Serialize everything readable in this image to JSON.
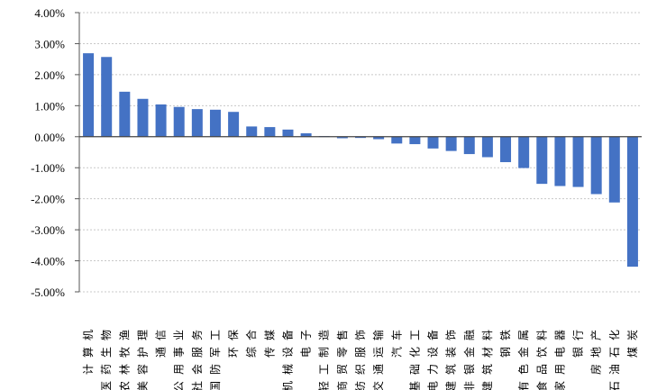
{
  "chart_data": {
    "type": "bar",
    "title": "",
    "xlabel": "",
    "ylabel": "",
    "ylim": [
      -5,
      4
    ],
    "yticks": [
      "4.00%",
      "3.00%",
      "2.00%",
      "1.00%",
      "0.00%",
      "-1.00%",
      "-2.00%",
      "-3.00%",
      "-4.00%",
      "-5.00%"
    ],
    "grid": true,
    "bar_color": "#4472C4",
    "categories": [
      "计算机",
      "医药生物",
      "农林牧渔",
      "美容护理",
      "通信",
      "公用事业",
      "社会服务",
      "国防军工",
      "环保",
      "综合",
      "传媒",
      "机械设备",
      "电子",
      "轻工制造",
      "商贸零售",
      "纺织服饰",
      "交通运输",
      "汽车",
      "基础化工",
      "电力设备",
      "建筑装饰",
      "非银金融",
      "建筑材料",
      "钢铁",
      "有色金属",
      "食品饮料",
      "家用电器",
      "银行",
      "房地产",
      "石油石化",
      "煤炭"
    ],
    "values": [
      2.69,
      2.57,
      1.45,
      1.22,
      1.04,
      0.96,
      0.89,
      0.87,
      0.8,
      0.33,
      0.31,
      0.23,
      0.11,
      0.02,
      -0.05,
      -0.04,
      -0.08,
      -0.22,
      -0.24,
      -0.38,
      -0.46,
      -0.56,
      -0.66,
      -0.82,
      -1.01,
      -1.52,
      -1.59,
      -1.62,
      -1.85,
      -2.12,
      -4.19
    ]
  }
}
